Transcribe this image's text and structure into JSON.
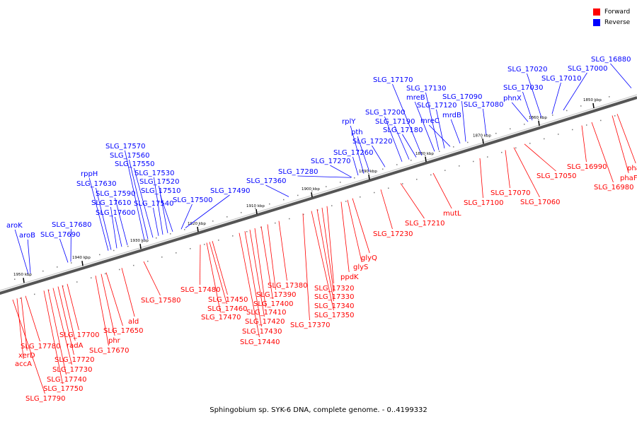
{
  "caption": "Sphingobium sp. SYK-6 DNA, complete genome. - 0..4199332",
  "legend": [
    {
      "label": "Forward",
      "color": "#ff0000"
    },
    {
      "label": "Reverse",
      "color": "#0000ff"
    }
  ],
  "colors": {
    "forward": "#ff0000",
    "forward_dark": "#aa0000",
    "reverse": "#0000ff",
    "reverse_dark": "#00008a",
    "axis": "#444444"
  },
  "ticks": [
    "1850 kbp",
    "1860 kbp",
    "1870 kbp",
    "1880 kbp",
    "1890 kbp",
    "1900 kbp",
    "1910 kbp",
    "1920 kbp",
    "1930 kbp",
    "1940 kbp",
    "1950 kbp"
  ],
  "reverse_genes": [
    "SLG_16880",
    "SLG_17000",
    "SLG_17010",
    "SLG_17020",
    "SLG_17030",
    "phnX",
    "SLG_17080",
    "SLG_17090",
    "mrdB",
    "mreC",
    "SLG_17120",
    "SLG_17130",
    "mreB",
    "SLG_17170",
    "SLG_17180",
    "SLG_17190",
    "SLG_17200",
    "SLG_17220",
    "pth",
    "rplY",
    "SLG_17260",
    "SLG_17270",
    "SLG_17280",
    "SLG_17360",
    "SLG_17490",
    "SLG_17500",
    "SLG_17510",
    "SLG_17520",
    "SLG_17530",
    "SLG_17540",
    "SLG_17550",
    "SLG_17560",
    "SLG_17570",
    "SLG_17590",
    "SLG_17600",
    "SLG_17610",
    "SLG_17630",
    "rppH",
    "SLG_17680",
    "SLG_17690",
    "aroB",
    "aroK"
  ],
  "forward_genes": [
    "phaE",
    "phaF",
    "SLG_16980",
    "SLG_16990",
    "SLG_17050",
    "SLG_17060",
    "SLG_17070",
    "SLG_17100",
    "mutL",
    "SLG_17210",
    "SLG_17230",
    "glyQ",
    "glyS",
    "ppdK",
    "SLG_17320",
    "SLG_17330",
    "SLG_17340",
    "SLG_17350",
    "SLG_17370",
    "SLG_17380",
    "SLG_17390",
    "SLG_17400",
    "SLG_17410",
    "SLG_17420",
    "SLG_17430",
    "SLG_17440",
    "SLG_17450",
    "SLG_17460",
    "SLG_17470",
    "SLG_17480",
    "SLG_17580",
    "ald",
    "SLG_17650",
    "phr",
    "SLG_17670",
    "SLG_17700",
    "radA",
    "SLG_17720",
    "SLG_17730",
    "SLG_17740",
    "SLG_17750",
    "SLG_17780",
    "xerD",
    "accA",
    "SLG_17790"
  ]
}
